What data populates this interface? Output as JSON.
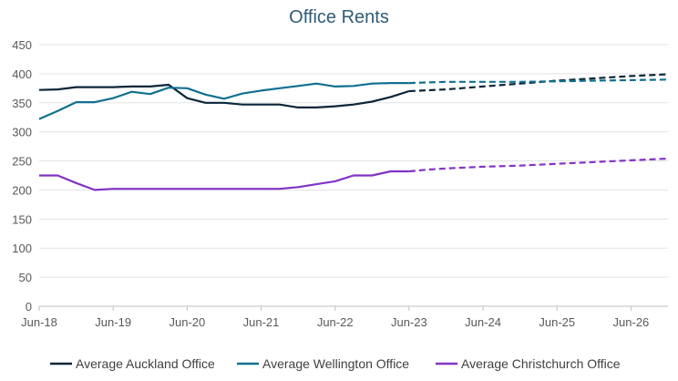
{
  "chart_data": {
    "type": "line",
    "title": "Office Rents",
    "xlabel": "",
    "ylabel": "",
    "ylim": [
      0,
      450
    ],
    "y_ticks": [
      0,
      50,
      100,
      150,
      200,
      250,
      300,
      350,
      400,
      450
    ],
    "x_ticks": [
      "Jun-18",
      "Jun-19",
      "Jun-20",
      "Jun-21",
      "Jun-22",
      "Jun-23",
      "Jun-24",
      "Jun-25",
      "Jun-26"
    ],
    "x_unit": "quarters from Jun-18",
    "x_range": [
      0,
      34
    ],
    "grid": "horizontal",
    "legend_position": "bottom",
    "series": [
      {
        "name": "Average Auckland Office",
        "color": "#0b2639",
        "actual": [
          [
            0,
            372
          ],
          [
            1,
            373
          ],
          [
            2,
            377
          ],
          [
            3,
            377
          ],
          [
            4,
            377
          ],
          [
            5,
            378
          ],
          [
            6,
            378
          ],
          [
            7,
            381
          ],
          [
            8,
            358
          ],
          [
            9,
            350
          ],
          [
            10,
            350
          ],
          [
            11,
            347
          ],
          [
            12,
            347
          ],
          [
            13,
            347
          ],
          [
            14,
            342
          ],
          [
            15,
            342
          ],
          [
            16,
            344
          ],
          [
            17,
            347
          ],
          [
            18,
            352
          ],
          [
            19,
            360
          ],
          [
            20,
            370
          ]
        ],
        "forecast": [
          [
            20,
            370
          ],
          [
            22,
            373
          ],
          [
            24,
            378
          ],
          [
            26,
            383
          ],
          [
            28,
            388
          ],
          [
            30,
            392
          ],
          [
            32,
            396
          ],
          [
            34,
            399
          ]
        ]
      },
      {
        "name": "Average Wellington Office",
        "color": "#11708f",
        "actual": [
          [
            0,
            322
          ],
          [
            1,
            336
          ],
          [
            2,
            351
          ],
          [
            3,
            351
          ],
          [
            4,
            358
          ],
          [
            5,
            369
          ],
          [
            6,
            365
          ],
          [
            7,
            376
          ],
          [
            8,
            375
          ],
          [
            9,
            364
          ],
          [
            10,
            357
          ],
          [
            11,
            366
          ],
          [
            12,
            371
          ],
          [
            13,
            375
          ],
          [
            14,
            379
          ],
          [
            15,
            383
          ],
          [
            16,
            378
          ],
          [
            17,
            379
          ],
          [
            18,
            383
          ],
          [
            19,
            384
          ],
          [
            20,
            384
          ]
        ],
        "forecast": [
          [
            20,
            384
          ],
          [
            22,
            386
          ],
          [
            24,
            386
          ],
          [
            26,
            386
          ],
          [
            28,
            387
          ],
          [
            30,
            388
          ],
          [
            32,
            389
          ],
          [
            34,
            390
          ]
        ]
      },
      {
        "name": "Average Christchurch Office",
        "color": "#8233c6",
        "actual": [
          [
            0,
            225
          ],
          [
            1,
            225
          ],
          [
            2,
            212
          ],
          [
            3,
            200
          ],
          [
            4,
            202
          ],
          [
            5,
            202
          ],
          [
            6,
            202
          ],
          [
            7,
            202
          ],
          [
            8,
            202
          ],
          [
            9,
            202
          ],
          [
            10,
            202
          ],
          [
            11,
            202
          ],
          [
            12,
            202
          ],
          [
            13,
            202
          ],
          [
            14,
            205
          ],
          [
            15,
            210
          ],
          [
            16,
            215
          ],
          [
            17,
            225
          ],
          [
            18,
            225
          ],
          [
            19,
            232
          ],
          [
            20,
            232
          ]
        ],
        "forecast": [
          [
            20,
            232
          ],
          [
            21,
            235
          ],
          [
            22,
            237
          ],
          [
            24,
            240
          ],
          [
            26,
            242
          ],
          [
            28,
            245
          ],
          [
            30,
            248
          ],
          [
            32,
            251
          ],
          [
            34,
            254
          ]
        ]
      }
    ]
  }
}
